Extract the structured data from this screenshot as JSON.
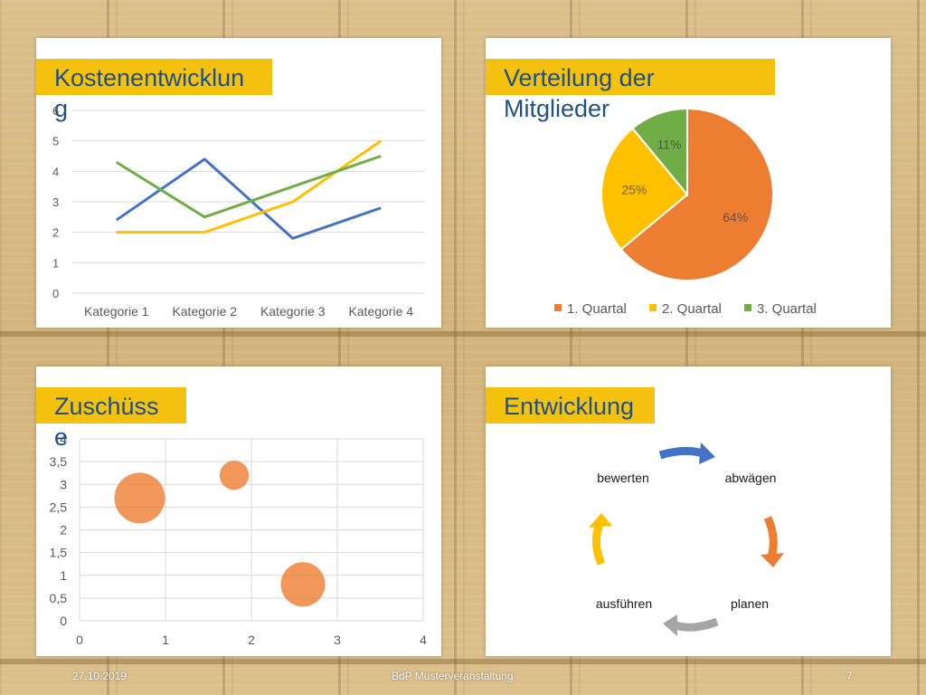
{
  "slide": {
    "footer_date": "27.10.2019",
    "footer_center": "BdP Musterveranstaltung",
    "page_number": "7"
  },
  "panels": {
    "top_left": {
      "title": "Kostenentwicklung"
    },
    "top_right": {
      "title": "Verteilung der Mitglieder"
    },
    "bottom_left": {
      "title": "Zuschüsse"
    },
    "bottom_right": {
      "title": "Entwicklung"
    }
  },
  "colors": {
    "title_bar": "#f4c20e",
    "title_text": "#1f4f87",
    "series_blue": "#4472c4",
    "series_orange": "#ed7d31",
    "series_yellow": "#ffc000",
    "series_green": "#70ad47",
    "series_gray": "#a5a5a5"
  },
  "cycle": {
    "steps": [
      "abwägen",
      "planen",
      "ausführen",
      "bewerten"
    ],
    "arrow_colors": [
      "#4472c4",
      "#ed7d31",
      "#a5a5a5",
      "#ffc000"
    ],
    "arrow_names": [
      "blue-arrow-icon",
      "orange-arrow-icon",
      "gray-arrow-icon",
      "yellow-arrow-icon"
    ]
  },
  "chart_data": [
    {
      "type": "line",
      "title": "Kostenentwicklung",
      "categories": [
        "Kategorie 1",
        "Kategorie 2",
        "Kategorie 3",
        "Kategorie 4"
      ],
      "series": [
        {
          "values": [
            2.4,
            4.4,
            1.8,
            2.8
          ],
          "color": "#4472c4"
        },
        {
          "values": [
            2.0,
            2.0,
            3.0,
            5.0
          ],
          "color": "#ffc000"
        },
        {
          "values": [
            4.3,
            2.5,
            3.5,
            4.5
          ],
          "color": "#70ad47"
        }
      ],
      "ylim": [
        0,
        6
      ],
      "yticks": [
        "0",
        "1",
        "2",
        "3",
        "4",
        "5",
        "6"
      ],
      "grid": true,
      "legend": "none"
    },
    {
      "type": "pie",
      "title": "Verteilung der Mitglieder",
      "slices": [
        {
          "name": "1. Quartal",
          "value": 64,
          "label": "64%",
          "color": "#ed7d31"
        },
        {
          "name": "2. Quartal",
          "value": 25,
          "label": "25%",
          "color": "#ffc000"
        },
        {
          "name": "3. Quartal",
          "value": 11,
          "label": "11%",
          "color": "#70ad47"
        }
      ],
      "legend": "bottom"
    },
    {
      "type": "scatter",
      "subtype": "bubble",
      "title": "Zuschüsse",
      "points": [
        {
          "x": 0.7,
          "y": 2.7,
          "size": 3
        },
        {
          "x": 1.8,
          "y": 3.2,
          "size": 1
        },
        {
          "x": 2.6,
          "y": 0.8,
          "size": 2.3
        }
      ],
      "xlim": [
        0,
        4
      ],
      "ylim": [
        0,
        4
      ],
      "xticks": [
        "0",
        "1",
        "2",
        "3",
        "4"
      ],
      "yticks": [
        "0",
        "0,5",
        "1",
        "1,5",
        "2",
        "2,5",
        "3",
        "3,5",
        "4"
      ],
      "color": "#ed7d31",
      "grid": true,
      "legend": "none"
    }
  ]
}
